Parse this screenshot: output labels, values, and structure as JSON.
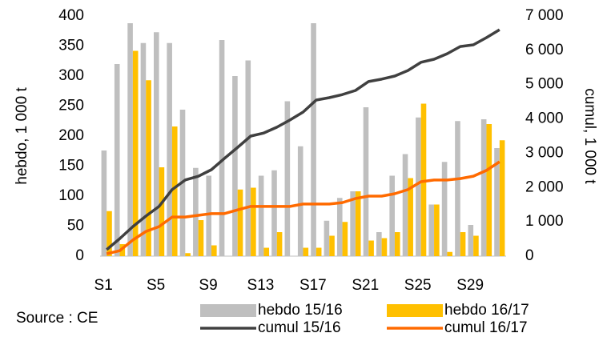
{
  "chart_data": {
    "type": "bar",
    "source": "Source : CE",
    "ylabel": "hebdo, 1 000 t",
    "y2label": "cumul, 1 000 t",
    "categories": [
      "S1",
      null,
      null,
      null,
      "S5",
      null,
      null,
      null,
      "S9",
      null,
      null,
      null,
      "S13",
      null,
      null,
      null,
      "S17",
      null,
      null,
      null,
      "S21",
      null,
      null,
      null,
      "S25",
      null,
      null,
      null,
      "S29",
      null,
      null
    ],
    "ylim": [
      0,
      400
    ],
    "yticks": [
      0,
      50,
      100,
      150,
      200,
      250,
      300,
      350,
      400
    ],
    "y2lim": [
      0,
      7000
    ],
    "y2ticks": [
      0,
      {
        "value": 1000,
        "label": "1 000"
      },
      {
        "value": 2000,
        "label": "2 000"
      },
      {
        "value": 3000,
        "label": "3 000"
      },
      {
        "value": 4000,
        "label": "4 000"
      },
      {
        "value": 5000,
        "label": "5 000"
      },
      {
        "value": 6000,
        "label": "6 000"
      },
      {
        "value": 7000,
        "label": "7 000"
      }
    ],
    "series": [
      {
        "name": "hebdo 15/16",
        "type": "bar",
        "color": "#bfbfbf",
        "values": [
          176,
          320,
          388,
          355,
          373,
          355,
          244,
          147,
          134,
          360,
          300,
          326,
          134,
          143,
          258,
          183,
          388,
          59,
          97,
          108,
          248,
          40,
          134,
          170,
          231,
          86,
          157,
          225,
          52,
          228,
          180
        ]
      },
      {
        "name": "hebdo 16/17",
        "type": "bar",
        "color": "#ffc000",
        "values": [
          75,
          20,
          342,
          293,
          148,
          216,
          5,
          60,
          18,
          0,
          111,
          114,
          14,
          40,
          0,
          14,
          14,
          34,
          57,
          108,
          26,
          30,
          40,
          130,
          254,
          86,
          7,
          40,
          34,
          220,
          193
        ]
      },
      {
        "name": "cumul 15/16",
        "type": "line",
        "axis": "y2",
        "color": "#404040",
        "values": [
          190,
          510,
          860,
          1170,
          1450,
          1940,
          2220,
          2330,
          2520,
          2850,
          3170,
          3500,
          3590,
          3760,
          3970,
          4200,
          4550,
          4620,
          4710,
          4830,
          5090,
          5160,
          5250,
          5410,
          5650,
          5740,
          5900,
          6110,
          6160,
          6370,
          6600
        ]
      },
      {
        "name": "cumul 16/17",
        "type": "line",
        "axis": "y2",
        "color": "#ff6a00",
        "values": [
          70,
          160,
          470,
          720,
          860,
          1140,
          1140,
          1190,
          1240,
          1240,
          1350,
          1450,
          1450,
          1450,
          1450,
          1520,
          1520,
          1520,
          1560,
          1680,
          1750,
          1750,
          1820,
          1940,
          2170,
          2220,
          2220,
          2260,
          2330,
          2500,
          2750
        ]
      }
    ]
  }
}
